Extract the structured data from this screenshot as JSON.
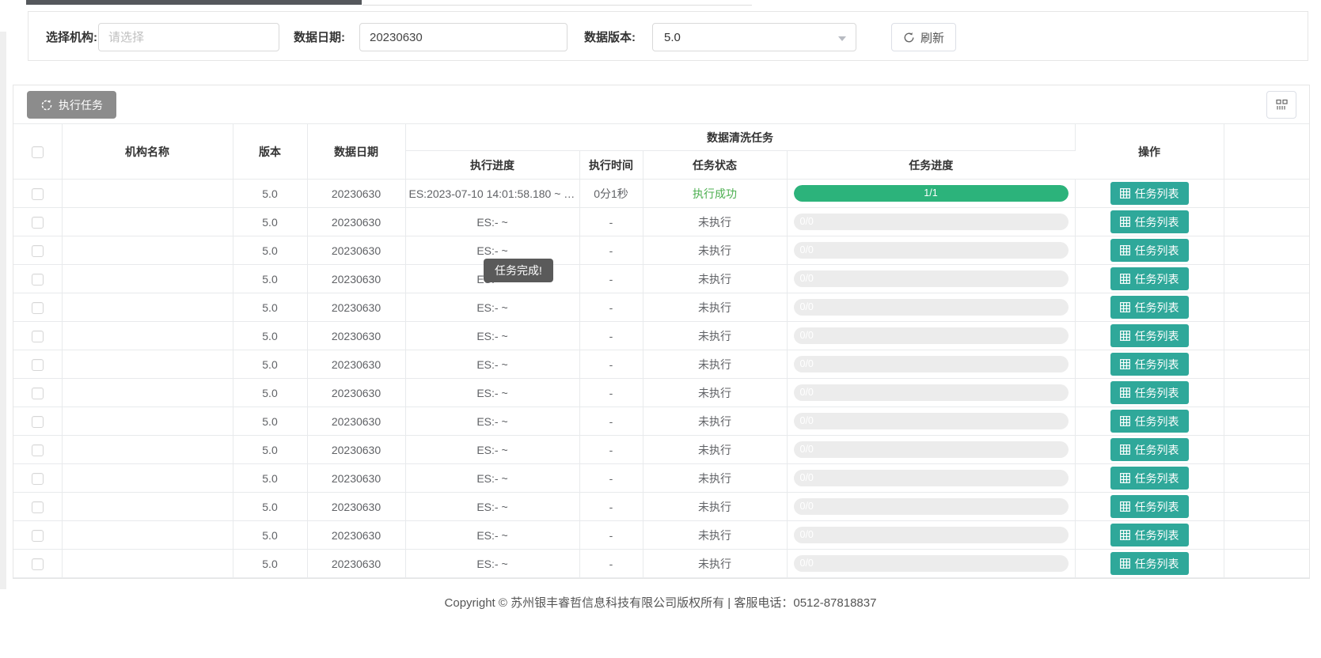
{
  "filter_bar": {
    "org_label": "选择机构:",
    "org_placeholder": "请选择",
    "date_label": "数据日期:",
    "date_value": "20230630",
    "version_label": "数据版本:",
    "version_value": "5.0",
    "refresh_label": "刷新"
  },
  "toolbar": {
    "execute_label": "执行任务"
  },
  "table": {
    "group_header": "数据清洗任务",
    "columns": {
      "org": "机构名称",
      "version": "版本",
      "date": "数据日期",
      "exec_progress": "执行进度",
      "exec_time": "执行时间",
      "task_status": "任务状态",
      "task_progress": "任务进度",
      "action": "操作"
    },
    "action_button_label": "任务列表",
    "rows": [
      {
        "org": "",
        "version": "5.0",
        "date": "20230630",
        "exec_progress": "ES:2023-07-10 14:01:58.180 ~ E...",
        "exec_time": "0分1秒",
        "status": "执行成功",
        "status_type": "success",
        "progress_label": "1/1",
        "progress_pct": 100
      },
      {
        "org": "",
        "version": "5.0",
        "date": "20230630",
        "exec_progress": "ES:- ~",
        "exec_time": "-",
        "status": "未执行",
        "status_type": "pending",
        "progress_label": "0/0",
        "progress_pct": 0
      },
      {
        "org": "",
        "version": "5.0",
        "date": "20230630",
        "exec_progress": "ES:- ~",
        "exec_time": "-",
        "status": "未执行",
        "status_type": "pending",
        "progress_label": "0/0",
        "progress_pct": 0
      },
      {
        "org": "",
        "version": "5.0",
        "date": "20230630",
        "exec_progress": "ES:- ~",
        "exec_time": "-",
        "status": "未执行",
        "status_type": "pending",
        "progress_label": "0/0",
        "progress_pct": 0
      },
      {
        "org": "",
        "version": "5.0",
        "date": "20230630",
        "exec_progress": "ES:- ~",
        "exec_time": "-",
        "status": "未执行",
        "status_type": "pending",
        "progress_label": "0/0",
        "progress_pct": 0
      },
      {
        "org": "",
        "version": "5.0",
        "date": "20230630",
        "exec_progress": "ES:- ~",
        "exec_time": "-",
        "status": "未执行",
        "status_type": "pending",
        "progress_label": "0/0",
        "progress_pct": 0
      },
      {
        "org": "",
        "version": "5.0",
        "date": "20230630",
        "exec_progress": "ES:- ~",
        "exec_time": "-",
        "status": "未执行",
        "status_type": "pending",
        "progress_label": "0/0",
        "progress_pct": 0
      },
      {
        "org": "",
        "version": "5.0",
        "date": "20230630",
        "exec_progress": "ES:- ~",
        "exec_time": "-",
        "status": "未执行",
        "status_type": "pending",
        "progress_label": "0/0",
        "progress_pct": 0
      },
      {
        "org": "",
        "version": "5.0",
        "date": "20230630",
        "exec_progress": "ES:- ~",
        "exec_time": "-",
        "status": "未执行",
        "status_type": "pending",
        "progress_label": "0/0",
        "progress_pct": 0
      },
      {
        "org": "",
        "version": "5.0",
        "date": "20230630",
        "exec_progress": "ES:- ~",
        "exec_time": "-",
        "status": "未执行",
        "status_type": "pending",
        "progress_label": "0/0",
        "progress_pct": 0
      },
      {
        "org": "",
        "version": "5.0",
        "date": "20230630",
        "exec_progress": "ES:- ~",
        "exec_time": "-",
        "status": "未执行",
        "status_type": "pending",
        "progress_label": "0/0",
        "progress_pct": 0
      },
      {
        "org": "",
        "version": "5.0",
        "date": "20230630",
        "exec_progress": "ES:- ~",
        "exec_time": "-",
        "status": "未执行",
        "status_type": "pending",
        "progress_label": "0/0",
        "progress_pct": 0
      },
      {
        "org": "",
        "version": "5.0",
        "date": "20230630",
        "exec_progress": "ES:- ~",
        "exec_time": "-",
        "status": "未执行",
        "status_type": "pending",
        "progress_label": "0/0",
        "progress_pct": 0
      },
      {
        "org": "",
        "version": "5.0",
        "date": "20230630",
        "exec_progress": "ES:- ~",
        "exec_time": "-",
        "status": "未执行",
        "status_type": "pending",
        "progress_label": "0/0",
        "progress_pct": 0
      }
    ]
  },
  "tooltip": {
    "text": "任务完成!"
  },
  "footer": {
    "text": "Copyright © 苏州银丰睿哲信息科技有限公司版权所有 | 客服电话：0512-87818837"
  },
  "colors": {
    "progress_green": "#2cb37b",
    "action_button": "#2fa89a",
    "status_success": "#4caf50",
    "execute_button_disabled": "#8c8c8c",
    "tooltip_bg": "#5a5a5a",
    "progress_track": "#ececec"
  }
}
